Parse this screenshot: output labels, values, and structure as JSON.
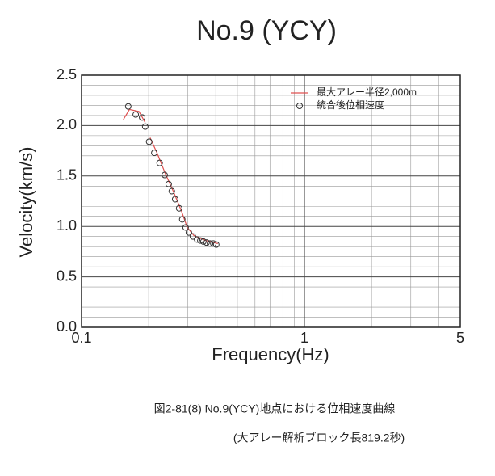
{
  "chart_data": {
    "type": "scatter",
    "title": "No.9 (YCY)",
    "x_label": "Frequency(Hz)",
    "y_label": "Velocity(km/s)",
    "xscale": "log",
    "xlim": [
      0.1,
      5
    ],
    "ylim": [
      0,
      2.5
    ],
    "xticks": [
      0.1,
      1,
      5
    ],
    "xminor": [
      0.2,
      0.3,
      0.4,
      0.5,
      0.6,
      0.7,
      0.8,
      0.9,
      2,
      3,
      4
    ],
    "yticks": [
      {
        "value": 0,
        "label": "0.0"
      },
      0.5,
      {
        "value": 1,
        "label": "1.0"
      },
      1.5,
      {
        "value": 2,
        "label": "2.0"
      },
      2.5
    ],
    "yminor": [
      0.1,
      0.2,
      0.3,
      0.4,
      0.6,
      0.7,
      0.8,
      0.9,
      1.1,
      1.2,
      1.3,
      1.4,
      1.6,
      1.7,
      1.8,
      1.9,
      2.1,
      2.2,
      2.3,
      2.4
    ],
    "grid": true,
    "legend": "upper right",
    "series": [
      {
        "name": "最大アレー半径2,000m",
        "mode": "line",
        "color": "#e05050",
        "x": [
          0.154,
          0.164,
          0.181,
          0.193,
          null,
          0.203,
          0.219,
          0.238,
          0.259,
          0.281,
          0.298,
          0.319,
          0.361,
          0.409
        ],
        "values": [
          2.06,
          2.16,
          2.14,
          2.03,
          null,
          1.88,
          1.72,
          1.52,
          1.34,
          1.15,
          0.99,
          0.91,
          0.86,
          0.83
        ]
      },
      {
        "name": "統合後位相速度",
        "mode": "markers",
        "color": "#333333",
        "x": [
          0.162,
          0.175,
          0.187,
          0.193,
          0.201,
          0.212,
          0.224,
          0.236,
          0.246,
          0.254,
          0.263,
          0.274,
          0.283,
          0.293,
          0.303,
          0.316,
          0.33,
          0.341,
          0.352,
          0.364,
          0.377,
          0.39,
          0.402
        ],
        "values": [
          2.19,
          2.11,
          2.08,
          1.99,
          1.84,
          1.73,
          1.63,
          1.51,
          1.42,
          1.35,
          1.27,
          1.18,
          1.07,
          0.99,
          0.94,
          0.9,
          0.87,
          0.86,
          0.85,
          0.84,
          0.83,
          0.83,
          0.82
        ]
      }
    ],
    "caption": [
      "図2-81(8) No.9(YCY)地点における位相速度曲線",
      "(大アレー解析ブロック長819.2秒)"
    ]
  }
}
